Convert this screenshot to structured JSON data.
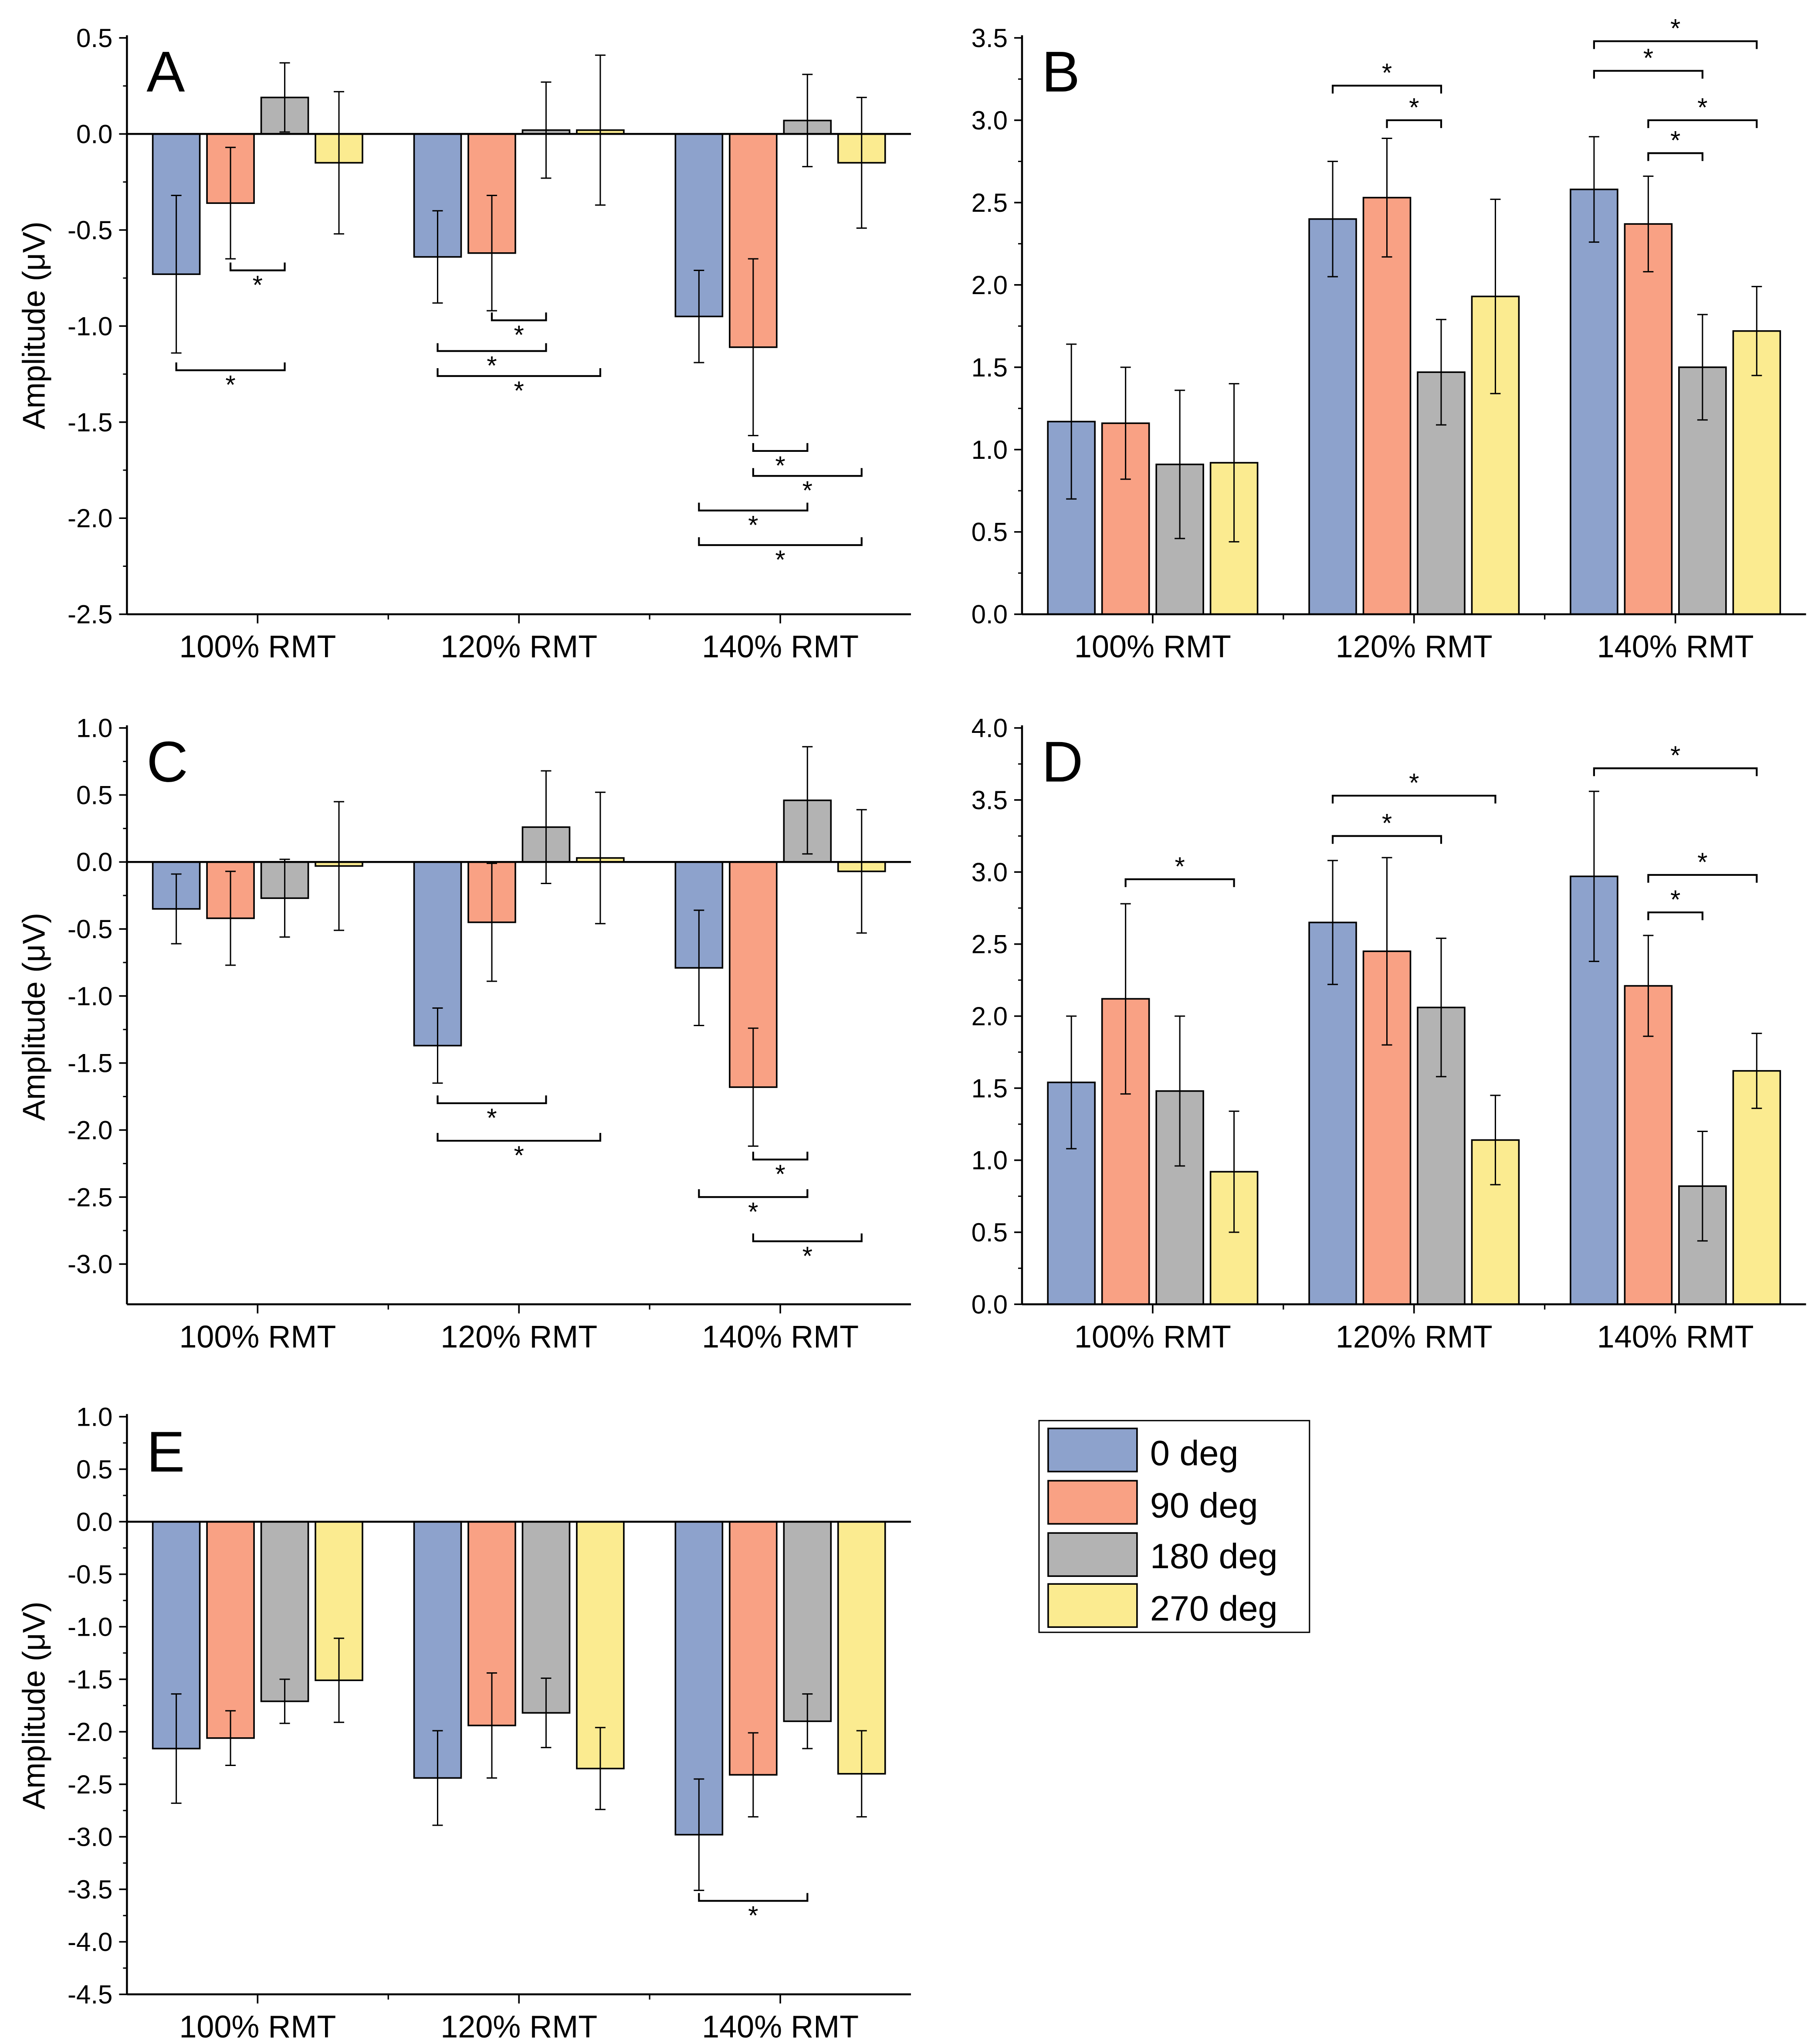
{
  "colors": {
    "s0": "#8da2cc",
    "s1": "#f9a184",
    "s2": "#b3b3b3",
    "s3": "#fbeb90",
    "axis": "#000000"
  },
  "legend": [
    "0 deg",
    "90 deg",
    "180 deg",
    "270 deg"
  ],
  "chart_data": [
    {
      "type": "bar",
      "panel_label": "A",
      "ylabel": "Amplitude (μV)",
      "ylim": [
        -2.5,
        0.5
      ],
      "ytick_labels": [
        "0.5",
        "0.0",
        "-0.5",
        "-1.0",
        "-1.5",
        "-2.0",
        "-2.5"
      ],
      "categories": [
        "100% RMT",
        "120% RMT",
        "140% RMT"
      ],
      "series": [
        {
          "name": "0 deg",
          "values": [
            -0.73,
            -0.64,
            -0.95
          ],
          "err": [
            0.41,
            0.24,
            0.24
          ]
        },
        {
          "name": "90 deg",
          "values": [
            -0.36,
            -0.62,
            -1.11
          ],
          "err": [
            0.29,
            0.3,
            0.46
          ]
        },
        {
          "name": "180 deg",
          "values": [
            0.19,
            0.02,
            0.07
          ],
          "err": [
            0.18,
            0.25,
            0.24
          ]
        },
        {
          "name": "270 deg",
          "values": [
            -0.15,
            0.02,
            -0.15
          ],
          "err": [
            0.37,
            0.39,
            0.34
          ]
        }
      ],
      "significance": [
        {
          "g": 0,
          "a": 1,
          "b": 2,
          "y": -0.71,
          "label": "*"
        },
        {
          "g": 0,
          "a": 0,
          "b": 2,
          "y": -1.23,
          "label": "*"
        },
        {
          "g": 1,
          "a": 1,
          "b": 2,
          "y": -0.97,
          "label": "*"
        },
        {
          "g": 1,
          "a": 0,
          "b": 2,
          "y": -1.13,
          "label": "*"
        },
        {
          "g": 1,
          "a": 0,
          "b": 3,
          "y": -1.26,
          "label": "*"
        },
        {
          "g": 2,
          "a": 1,
          "b": 2,
          "y": -1.65,
          "label": "*"
        },
        {
          "g": 2,
          "a": 1,
          "b": 3,
          "y": -1.78,
          "label": "*"
        },
        {
          "g": 2,
          "a": 0,
          "b": 2,
          "y": -1.96,
          "label": "*"
        },
        {
          "g": 2,
          "a": 0,
          "b": 3,
          "y": -2.14,
          "label": "*"
        }
      ]
    },
    {
      "type": "bar",
      "panel_label": "B",
      "ylabel": "",
      "ylim": [
        0,
        3.5
      ],
      "ytick_labels": [
        "3.5",
        "3.0",
        "2.5",
        "2.0",
        "1.5",
        "1.0",
        "0.5",
        "0.0"
      ],
      "categories": [
        "100% RMT",
        "120% RMT",
        "140% RMT"
      ],
      "series": [
        {
          "name": "0 deg",
          "values": [
            1.17,
            2.4,
            2.58
          ],
          "err": [
            0.47,
            0.35,
            0.32
          ]
        },
        {
          "name": "90 deg",
          "values": [
            1.16,
            2.53,
            2.37
          ],
          "err": [
            0.34,
            0.36,
            0.29
          ]
        },
        {
          "name": "180 deg",
          "values": [
            0.91,
            1.47,
            1.5
          ],
          "err": [
            0.45,
            0.32,
            0.32
          ]
        },
        {
          "name": "270 deg",
          "values": [
            0.92,
            1.93,
            1.72
          ],
          "err": [
            0.48,
            0.59,
            0.27
          ]
        }
      ],
      "significance": [
        {
          "g": 1,
          "a": 0,
          "b": 2,
          "y": 3.21,
          "label": "*"
        },
        {
          "g": 1,
          "a": 1,
          "b": 2,
          "y": 3.0,
          "label": "*"
        },
        {
          "g": 2,
          "a": 0,
          "b": 3,
          "y": 3.48,
          "label": "*"
        },
        {
          "g": 2,
          "a": 0,
          "b": 2,
          "y": 3.3,
          "label": "*"
        },
        {
          "g": 2,
          "a": 1,
          "b": 3,
          "y": 3.0,
          "label": "*"
        },
        {
          "g": 2,
          "a": 1,
          "b": 2,
          "y": 2.8,
          "label": "*"
        }
      ]
    },
    {
      "type": "bar",
      "panel_label": "C",
      "ylabel": "Amplitude (μV)",
      "ylim": [
        -3.3,
        1.0
      ],
      "ytick_labels": [
        "1.0",
        "0.5",
        "0.0",
        "-0.5",
        "-1.0",
        "-1.5",
        "-2.0",
        "-2.5",
        "-3.0"
      ],
      "categories": [
        "100% RMT",
        "120% RMT",
        "140% RMT"
      ],
      "series": [
        {
          "name": "0 deg",
          "values": [
            -0.35,
            -1.37,
            -0.79
          ],
          "err": [
            0.26,
            0.28,
            0.43
          ]
        },
        {
          "name": "90 deg",
          "values": [
            -0.42,
            -0.45,
            -1.68
          ],
          "err": [
            0.35,
            0.44,
            0.44
          ]
        },
        {
          "name": "180 deg",
          "values": [
            -0.27,
            0.26,
            0.46
          ],
          "err": [
            0.29,
            0.42,
            0.4
          ]
        },
        {
          "name": "270 deg",
          "values": [
            -0.03,
            0.03,
            -0.07
          ],
          "err": [
            0.48,
            0.49,
            0.46
          ]
        }
      ],
      "significance": [
        {
          "g": 1,
          "a": 0,
          "b": 2,
          "y": -1.8,
          "label": "*"
        },
        {
          "g": 1,
          "a": 0,
          "b": 3,
          "y": -2.08,
          "label": "*"
        },
        {
          "g": 2,
          "a": 1,
          "b": 2,
          "y": -2.22,
          "label": "*"
        },
        {
          "g": 2,
          "a": 0,
          "b": 2,
          "y": -2.5,
          "label": "*"
        },
        {
          "g": 2,
          "a": 1,
          "b": 3,
          "y": -2.83,
          "label": "*"
        }
      ]
    },
    {
      "type": "bar",
      "panel_label": "D",
      "ylabel": "",
      "ylim": [
        0,
        4.0
      ],
      "ytick_labels": [
        "4.0",
        "3.5",
        "3.0",
        "2.5",
        "2.0",
        "1.5",
        "1.0",
        "0.5",
        "0.0"
      ],
      "categories": [
        "100% RMT",
        "120% RMT",
        "140% RMT"
      ],
      "series": [
        {
          "name": "0 deg",
          "values": [
            1.54,
            2.65,
            2.97
          ],
          "err": [
            0.46,
            0.43,
            0.59
          ]
        },
        {
          "name": "90 deg",
          "values": [
            2.12,
            2.45,
            2.21
          ],
          "err": [
            0.66,
            0.65,
            0.35
          ]
        },
        {
          "name": "180 deg",
          "values": [
            1.48,
            2.06,
            0.82
          ],
          "err": [
            0.52,
            0.48,
            0.38
          ]
        },
        {
          "name": "270 deg",
          "values": [
            0.92,
            1.14,
            1.62
          ],
          "err": [
            0.42,
            0.31,
            0.26
          ]
        }
      ],
      "significance": [
        {
          "g": 0,
          "a": 1,
          "b": 3,
          "y": 2.95,
          "label": "*"
        },
        {
          "g": 1,
          "a": 0,
          "b": 3,
          "y": 3.53,
          "label": "*"
        },
        {
          "g": 1,
          "a": 0,
          "b": 2,
          "y": 3.25,
          "label": "*"
        },
        {
          "g": 2,
          "a": 0,
          "b": 3,
          "y": 3.72,
          "label": "*"
        },
        {
          "g": 2,
          "a": 1,
          "b": 3,
          "y": 2.98,
          "label": "*"
        },
        {
          "g": 2,
          "a": 1,
          "b": 2,
          "y": 2.72,
          "label": "*"
        }
      ]
    },
    {
      "type": "bar",
      "panel_label": "E",
      "ylabel": "Amplitude (μV)",
      "ylim": [
        -4.5,
        1.0
      ],
      "ytick_labels": [
        "1.0",
        "0.5",
        "0.0",
        "-0.5",
        "-1.0",
        "-1.5",
        "-2.0",
        "-2.5",
        "-3.0",
        "-3.5",
        "-4.0",
        "-4.5"
      ],
      "categories": [
        "100% RMT",
        "120% RMT",
        "140% RMT"
      ],
      "series": [
        {
          "name": "0 deg",
          "values": [
            -2.16,
            -2.44,
            -2.98
          ],
          "err": [
            0.52,
            0.45,
            0.53
          ]
        },
        {
          "name": "90 deg",
          "values": [
            -2.06,
            -1.94,
            -2.41
          ],
          "err": [
            0.26,
            0.5,
            0.4
          ]
        },
        {
          "name": "180 deg",
          "values": [
            -1.71,
            -1.82,
            -1.9
          ],
          "err": [
            0.21,
            0.33,
            0.26
          ]
        },
        {
          "name": "270 deg",
          "values": [
            -1.51,
            -2.35,
            -2.4
          ],
          "err": [
            0.4,
            0.39,
            0.41
          ]
        }
      ],
      "significance": [
        {
          "g": 2,
          "a": 0,
          "b": 2,
          "y": -3.61,
          "label": "*"
        }
      ]
    }
  ]
}
